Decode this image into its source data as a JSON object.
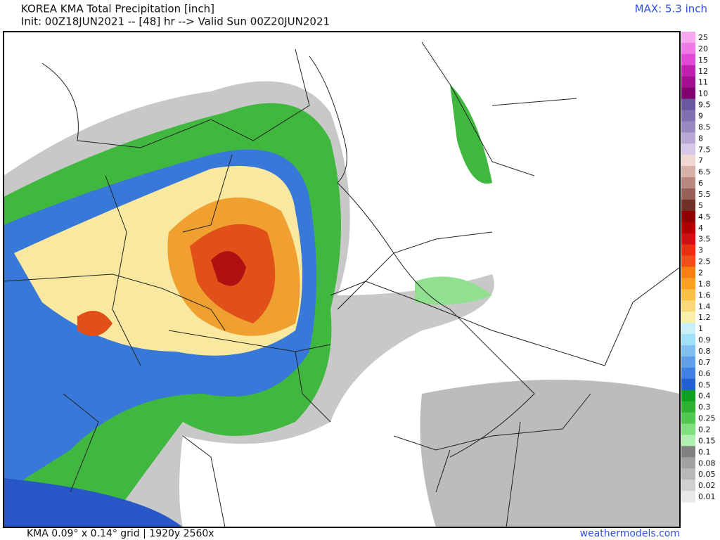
{
  "header": {
    "title": "KOREA KMA Total Precipitation [inch]",
    "subtitle": "Init: 00Z18JUN2021 -- [48] hr --> Valid Sun 00Z20JUN2021",
    "max": "MAX: 5.3 inch"
  },
  "legend": [
    {
      "label": "25",
      "color": "#f8a8f0"
    },
    {
      "label": "20",
      "color": "#f078e8"
    },
    {
      "label": "15",
      "color": "#e048d8"
    },
    {
      "label": "12",
      "color": "#c020b0"
    },
    {
      "label": "11",
      "color": "#a01090"
    },
    {
      "label": "10",
      "color": "#800070"
    },
    {
      "label": "9.5",
      "color": "#6858a0"
    },
    {
      "label": "9",
      "color": "#8070b0"
    },
    {
      "label": "8.5",
      "color": "#9888c0"
    },
    {
      "label": "8",
      "color": "#b8a8d8"
    },
    {
      "label": "7.5",
      "color": "#d8c8e8"
    },
    {
      "label": "7",
      "color": "#f0d8d0"
    },
    {
      "label": "6.5",
      "color": "#d8b0a8"
    },
    {
      "label": "6",
      "color": "#b88880"
    },
    {
      "label": "5.5",
      "color": "#986058"
    },
    {
      "label": "5",
      "color": "#703028"
    },
    {
      "label": "4.5",
      "color": "#900000"
    },
    {
      "label": "4",
      "color": "#b00000"
    },
    {
      "label": "3.5",
      "color": "#d01010"
    },
    {
      "label": "3",
      "color": "#e83010"
    },
    {
      "label": "2.5",
      "color": "#f05018"
    },
    {
      "label": "2",
      "color": "#f88010"
    },
    {
      "label": "1.8",
      "color": "#f8a020"
    },
    {
      "label": "1.6",
      "color": "#f8c048"
    },
    {
      "label": "1.4",
      "color": "#f8d878"
    },
    {
      "label": "1.2",
      "color": "#f8f0a8"
    },
    {
      "label": "1",
      "color": "#c8f0f8"
    },
    {
      "label": "0.9",
      "color": "#a0e0f8"
    },
    {
      "label": "0.8",
      "color": "#80c0f0"
    },
    {
      "label": "0.7",
      "color": "#60a0e8"
    },
    {
      "label": "0.6",
      "color": "#4080e0"
    },
    {
      "label": "0.5",
      "color": "#2060d0"
    },
    {
      "label": "0.4",
      "color": "#10a020"
    },
    {
      "label": "0.3",
      "color": "#30b030"
    },
    {
      "label": "0.25",
      "color": "#50c850"
    },
    {
      "label": "0.2",
      "color": "#80e080"
    },
    {
      "label": "0.15",
      "color": "#b0f0b0"
    },
    {
      "label": "0.1",
      "color": "#808080"
    },
    {
      "label": "0.08",
      "color": "#a0a0a0"
    },
    {
      "label": "0.05",
      "color": "#b8b8b8"
    },
    {
      "label": "0.02",
      "color": "#d0d0d0"
    },
    {
      "label": "0.01",
      "color": "#e8e8e8"
    }
  ],
  "footer": {
    "grid": "KMA 0.09° x 0.14° grid | 1920y 2560x",
    "site": "weathermodels.com"
  }
}
